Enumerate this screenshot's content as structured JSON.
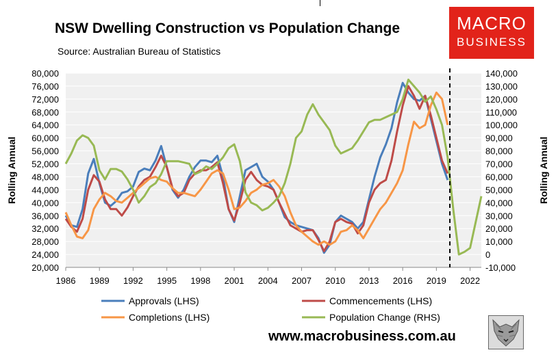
{
  "header": {
    "title": "NSW Dwelling Construction vs Population Change",
    "source": "Source: Australian Bureau of Statistics",
    "logo_line1": "MACRO",
    "logo_line2": "BUSINESS",
    "website": "www.macrobusiness.com.au"
  },
  "colors": {
    "approvals": "#4a7ebb",
    "commencements": "#be4b48",
    "completions": "#f79646",
    "population": "#98b954",
    "plot_bg": "#f0f0f0",
    "brand": "#e2231a"
  },
  "chart_data": {
    "type": "line",
    "title": "NSW Dwelling Construction vs Population Change",
    "subtitle": "Source: Australian Bureau of Statistics",
    "ylabel_left": "Rolling Annual",
    "ylabel_right": "Rolling Annual",
    "ylim_left": [
      20000,
      80000
    ],
    "ylim_right": [
      -10000,
      140000
    ],
    "xlim": [
      1986,
      2023
    ],
    "x_ticks": [
      1986,
      1989,
      1992,
      1995,
      1998,
      2001,
      2004,
      2007,
      2010,
      2013,
      2016,
      2019,
      2022
    ],
    "x_tick_labels": [
      "1986",
      "1989",
      "1992",
      "1995",
      "1998",
      "2001",
      "2004",
      "2007",
      "2010",
      "2013",
      "2016",
      "2019",
      "2022"
    ],
    "y_left_ticks": [
      20000,
      24000,
      28000,
      32000,
      36000,
      40000,
      44000,
      48000,
      52000,
      56000,
      60000,
      64000,
      68000,
      72000,
      76000,
      80000
    ],
    "y_left_tick_labels": [
      "20,000",
      "24,000",
      "28,000",
      "32,000",
      "36,000",
      "40,000",
      "44,000",
      "48,000",
      "52,000",
      "56,000",
      "60,000",
      "64,000",
      "68,000",
      "72,000",
      "76,000",
      "80,000"
    ],
    "y_right_ticks": [
      -10000,
      0,
      10000,
      20000,
      30000,
      40000,
      50000,
      60000,
      70000,
      80000,
      90000,
      100000,
      110000,
      120000,
      130000,
      140000
    ],
    "y_right_tick_labels": [
      "-10,000",
      "0",
      "10,000",
      "20,000",
      "30,000",
      "40,000",
      "50,000",
      "60,000",
      "70,000",
      "80,000",
      "90,000",
      "100,000",
      "110,000",
      "120,000",
      "130,000",
      "140,000"
    ],
    "forecast_marker_x": 2020.2,
    "legend_position": "bottom",
    "series": [
      {
        "name": "Approvals (LHS)",
        "axis": "left",
        "color": "#4a7ebb",
        "x": [
          1986,
          1986.5,
          1987,
          1987.5,
          1988,
          1988.5,
          1989,
          1989.5,
          1990,
          1990.5,
          1991,
          1991.5,
          1992,
          1992.5,
          1993,
          1993.5,
          1994,
          1994.5,
          1995,
          1995.5,
          1996,
          1996.5,
          1997,
          1997.5,
          1998,
          1998.5,
          1999,
          1999.5,
          2000,
          2000.5,
          2001,
          2001.5,
          2002,
          2002.5,
          2003,
          2003.5,
          2004,
          2004.5,
          2005,
          2005.5,
          2006,
          2006.5,
          2007,
          2007.5,
          2008,
          2008.5,
          2009,
          2009.5,
          2010,
          2010.5,
          2011,
          2011.5,
          2012,
          2012.5,
          2013,
          2013.5,
          2014,
          2014.5,
          2015,
          2015.5,
          2016,
          2016.5,
          2017,
          2017.5,
          2018,
          2018.5,
          2019,
          2019.5,
          2020
        ],
        "values": [
          36000,
          33000,
          32500,
          38000,
          49000,
          53500,
          46000,
          40000,
          39000,
          40500,
          43000,
          43500,
          45000,
          49500,
          50500,
          50000,
          53000,
          57500,
          51000,
          44000,
          41500,
          44000,
          48000,
          51000,
          53000,
          53000,
          52500,
          54500,
          48000,
          38000,
          34000,
          42000,
          50000,
          51000,
          52000,
          48000,
          46500,
          44000,
          40000,
          35500,
          34000,
          33000,
          32500,
          32000,
          31500,
          29000,
          24500,
          27000,
          34000,
          36000,
          35000,
          34000,
          32000,
          34000,
          41000,
          48000,
          54000,
          58000,
          63000,
          71000,
          77000,
          74000,
          72000,
          71500,
          73000,
          66000,
          59000,
          52000,
          47000
        ]
      },
      {
        "name": "Commencements (LHS)",
        "axis": "left",
        "color": "#be4b48",
        "x": [
          1986,
          1986.5,
          1987,
          1987.5,
          1988,
          1988.5,
          1989,
          1989.5,
          1990,
          1990.5,
          1991,
          1991.5,
          1992,
          1992.5,
          1993,
          1993.5,
          1994,
          1994.5,
          1995,
          1995.5,
          1996,
          1996.5,
          1997,
          1997.5,
          1998,
          1998.5,
          1999,
          1999.5,
          2000,
          2000.5,
          2001,
          2001.5,
          2002,
          2002.5,
          2003,
          2003.5,
          2004,
          2004.5,
          2005,
          2005.5,
          2006,
          2006.5,
          2007,
          2007.5,
          2008,
          2008.5,
          2009,
          2009.5,
          2010,
          2010.5,
          2011,
          2011.5,
          2012,
          2012.5,
          2013,
          2013.5,
          2014,
          2014.5,
          2015,
          2015.5,
          2016,
          2016.5,
          2017,
          2017.5,
          2018,
          2018.5,
          2019,
          2019.5,
          2020
        ],
        "values": [
          35000,
          32500,
          31000,
          35000,
          44000,
          48500,
          46500,
          41000,
          38000,
          38000,
          36000,
          38500,
          42000,
          45000,
          47000,
          48000,
          51000,
          54500,
          51000,
          44500,
          42000,
          43000,
          47000,
          49000,
          50000,
          50000,
          51000,
          52500,
          46000,
          38000,
          34500,
          40000,
          47000,
          49500,
          47000,
          45500,
          45000,
          44000,
          40000,
          36500,
          33000,
          32000,
          31000,
          31500,
          31500,
          28500,
          25000,
          28000,
          34000,
          35000,
          34000,
          33500,
          30500,
          33000,
          40000,
          44000,
          46000,
          47000,
          53000,
          62000,
          70000,
          76000,
          73000,
          69000,
          73000,
          67000,
          60000,
          53000,
          49000
        ]
      },
      {
        "name": "Completions (LHS)",
        "axis": "left",
        "color": "#f79646",
        "x": [
          1986,
          1986.5,
          1987,
          1987.5,
          1988,
          1988.5,
          1989,
          1989.5,
          1990,
          1990.5,
          1991,
          1991.5,
          1992,
          1992.5,
          1993,
          1993.5,
          1994,
          1994.5,
          1995,
          1995.5,
          1996,
          1996.5,
          1997,
          1997.5,
          1998,
          1998.5,
          1999,
          1999.5,
          2000,
          2000.5,
          2001,
          2001.5,
          2002,
          2002.5,
          2003,
          2003.5,
          2004,
          2004.5,
          2005,
          2005.5,
          2006,
          2006.5,
          2007,
          2007.5,
          2008,
          2008.5,
          2009,
          2009.5,
          2010,
          2010.5,
          2011,
          2011.5,
          2012,
          2012.5,
          2013,
          2013.5,
          2014,
          2014.5,
          2015,
          2015.5,
          2016,
          2016.5,
          2017,
          2017.5,
          2018,
          2018.5,
          2019,
          2019.5,
          2020
        ],
        "values": [
          37000,
          33000,
          29500,
          29000,
          31500,
          38000,
          41000,
          43000,
          42000,
          40500,
          40000,
          41500,
          43000,
          44500,
          46000,
          47500,
          48000,
          47000,
          46500,
          44500,
          43000,
          43000,
          42500,
          42000,
          44000,
          46500,
          49000,
          50000,
          49000,
          44000,
          38000,
          38500,
          40500,
          43000,
          44000,
          45500,
          46000,
          47000,
          45000,
          42000,
          37000,
          33000,
          31000,
          29500,
          28000,
          27000,
          28000,
          27000,
          28000,
          31000,
          31500,
          33000,
          31500,
          29000,
          32000,
          35000,
          38000,
          40000,
          43000,
          46000,
          50000,
          58000,
          65000,
          63000,
          64000,
          70000,
          74000,
          72000,
          64000
        ]
      },
      {
        "name": "Population Change (RHS)",
        "axis": "right",
        "color": "#98b954",
        "x": [
          1986,
          1986.5,
          1987,
          1987.5,
          1988,
          1988.5,
          1989,
          1989.5,
          1990,
          1990.5,
          1991,
          1991.5,
          1992,
          1992.5,
          1993,
          1993.5,
          1994,
          1994.5,
          1995,
          1995.5,
          1996,
          1996.5,
          1997,
          1997.5,
          1998,
          1998.5,
          1999,
          1999.5,
          2000,
          2000.5,
          2001,
          2001.5,
          2002,
          2002.5,
          2003,
          2003.5,
          2004,
          2004.5,
          2005,
          2005.5,
          2006,
          2006.5,
          2007,
          2007.5,
          2008,
          2008.5,
          2009,
          2009.5,
          2010,
          2010.5,
          2011,
          2011.5,
          2012,
          2012.5,
          2013,
          2013.5,
          2014,
          2014.5,
          2015,
          2015.5,
          2016,
          2016.5,
          2017,
          2017.5,
          2018,
          2018.5,
          2019,
          2019.5,
          2020,
          2020.5,
          2021,
          2021.5,
          2022,
          2022.5,
          2023
        ],
        "values": [
          70000,
          78000,
          88000,
          92000,
          90000,
          84000,
          65000,
          58000,
          66000,
          66000,
          64000,
          58000,
          50000,
          40000,
          45000,
          52000,
          55000,
          62000,
          72000,
          72000,
          72000,
          71000,
          70000,
          62000,
          64000,
          68000,
          66000,
          70000,
          75000,
          82000,
          85000,
          72000,
          48000,
          40000,
          38000,
          34000,
          36000,
          40000,
          45000,
          55000,
          70000,
          90000,
          95000,
          108000,
          116000,
          108000,
          102000,
          96000,
          84000,
          78000,
          80000,
          82000,
          88000,
          95000,
          102000,
          104000,
          104000,
          106000,
          108000,
          110000,
          120000,
          135000,
          130000,
          125000,
          118000,
          122000,
          112000,
          100000,
          75000,
          35000,
          0,
          2000,
          5000,
          25000,
          45000
        ]
      }
    ]
  },
  "legend": {
    "approvals": "Approvals (LHS)",
    "commencements": "Commencements (LHS)",
    "completions": "Completions (LHS)",
    "population": "Population Change (RHS)"
  }
}
